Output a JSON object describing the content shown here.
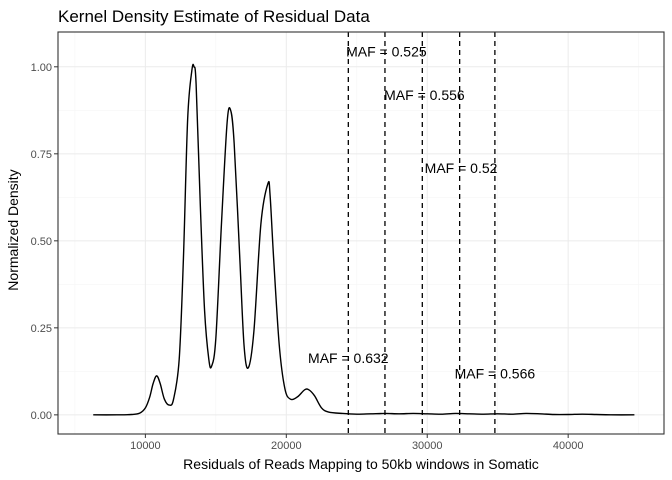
{
  "chart_data": {
    "type": "line",
    "title": "Kernel Density Estimate of Residual Data",
    "xlabel": "Residuals of Reads Mapping to 50kb windows in Somatic",
    "ylabel": "Normalized Density",
    "xlim": [
      3800,
      46800
    ],
    "ylim": [
      -0.055,
      1.1
    ],
    "x_ticks": [
      10000,
      20000,
      30000,
      40000
    ],
    "x_tick_labels": [
      "10000",
      "20000",
      "30000",
      "40000"
    ],
    "y_ticks": [
      0.0,
      0.25,
      0.5,
      0.75,
      1.0
    ],
    "y_tick_labels": [
      "0.00",
      "0.25",
      "0.50",
      "0.75",
      "1.00"
    ],
    "grid": true,
    "series": [
      {
        "points": [
          [
            6300,
            0.0
          ],
          [
            8000,
            0.0
          ],
          [
            9000,
            0.001
          ],
          [
            9600,
            0.005
          ],
          [
            10000,
            0.02
          ],
          [
            10300,
            0.05
          ],
          [
            10550,
            0.09
          ],
          [
            10800,
            0.112
          ],
          [
            11050,
            0.09
          ],
          [
            11350,
            0.045
          ],
          [
            11700,
            0.028
          ],
          [
            12000,
            0.045
          ],
          [
            12400,
            0.16
          ],
          [
            12700,
            0.45
          ],
          [
            13000,
            0.85
          ],
          [
            13300,
            0.99
          ],
          [
            13450,
            1.0
          ],
          [
            13600,
            0.95
          ],
          [
            13900,
            0.6
          ],
          [
            14200,
            0.3
          ],
          [
            14500,
            0.16
          ],
          [
            14700,
            0.14
          ],
          [
            15000,
            0.22
          ],
          [
            15400,
            0.55
          ],
          [
            15800,
            0.84
          ],
          [
            16050,
            0.875
          ],
          [
            16300,
            0.78
          ],
          [
            16700,
            0.45
          ],
          [
            17000,
            0.2
          ],
          [
            17300,
            0.135
          ],
          [
            17700,
            0.24
          ],
          [
            18200,
            0.55
          ],
          [
            18700,
            0.665
          ],
          [
            18850,
            0.63
          ],
          [
            19100,
            0.45
          ],
          [
            19500,
            0.2
          ],
          [
            19900,
            0.075
          ],
          [
            20300,
            0.045
          ],
          [
            20800,
            0.052
          ],
          [
            21300,
            0.072
          ],
          [
            21600,
            0.072
          ],
          [
            22000,
            0.055
          ],
          [
            22500,
            0.02
          ],
          [
            23000,
            0.008
          ],
          [
            24000,
            0.004
          ],
          [
            25000,
            0.002
          ],
          [
            26000,
            0.003
          ],
          [
            27000,
            0.004
          ],
          [
            28000,
            0.003
          ],
          [
            29000,
            0.004
          ],
          [
            30000,
            0.003
          ],
          [
            31000,
            0.002
          ],
          [
            32000,
            0.004
          ],
          [
            33000,
            0.003
          ],
          [
            34000,
            0.002
          ],
          [
            35000,
            0.003
          ],
          [
            36000,
            0.002
          ],
          [
            37000,
            0.004
          ],
          [
            38000,
            0.003
          ],
          [
            39000,
            0.001
          ],
          [
            40000,
            0.001
          ],
          [
            41000,
            0.002
          ],
          [
            42000,
            0.001
          ],
          [
            43000,
            0.0
          ],
          [
            44700,
            0.0
          ]
        ],
        "color": "#000000"
      }
    ],
    "vlines": [
      24400,
      27000,
      29650,
      32300,
      34800
    ],
    "annotations": [
      {
        "text": "MAF = 0.525",
        "x": 27100,
        "y": 1.04
      },
      {
        "text": "MAF = 0.556",
        "x": 29800,
        "y": 0.915
      },
      {
        "text": "MAF = 0.52",
        "x": 32400,
        "y": 0.705
      },
      {
        "text": "MAF = 0.632",
        "x": 24400,
        "y": 0.16
      },
      {
        "text": "MAF = 0.566",
        "x": 34800,
        "y": 0.115
      }
    ]
  }
}
